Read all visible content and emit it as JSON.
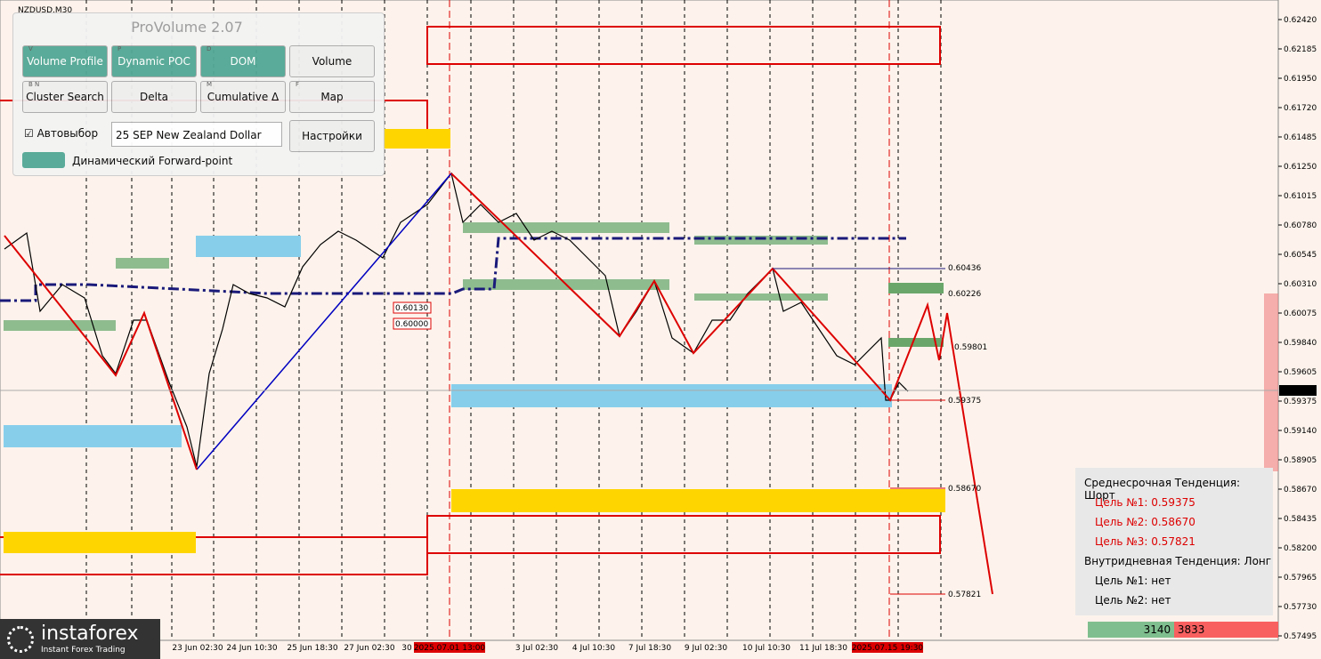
{
  "symbol": "NZDUSD,M30",
  "panel": {
    "title": "ProVolume 2.07",
    "buttons": [
      {
        "key": "V",
        "label": "Volume Profile"
      },
      {
        "key": "P",
        "label": "Dynamic POC"
      },
      {
        "key": "D",
        "label": "DOM"
      },
      {
        "key": "",
        "label": "Volume"
      },
      {
        "key": "B N",
        "label": "Cluster Search"
      },
      {
        "key": "",
        "label": "Delta"
      },
      {
        "key": "M",
        "label": "Cumulative Δ"
      },
      {
        "key": "F",
        "label": "Map"
      }
    ],
    "auto": "Автовыбор",
    "instrument": "25 SEP New Zealand Dollar",
    "settings": "Настройки",
    "forward": "Динамический Forward-point"
  },
  "price_axis": [
    "0.62420",
    "0.62185",
    "0.61950",
    "0.61720",
    "0.61485",
    "0.61250",
    "0.61015",
    "0.60780",
    "0.60545",
    "0.60310",
    "0.60075",
    "0.59840",
    "0.59605",
    "0.59375",
    "0.59140",
    "0.58905",
    "0.58670",
    "0.58435",
    "0.58200",
    "0.57965",
    "0.57730",
    "0.57495"
  ],
  "current_price": "0.59457",
  "time_axis": [
    "23 Jun 02:30",
    "24 Jun 10:30",
    "25 Jun 18:30",
    "27 Jun 02:30",
    "30",
    "2025.07.01 13:00",
    "3 Jul 02:30",
    "4 Jul 10:30",
    "7 Jul 18:30",
    "9 Jul 02:30",
    "10 Jul 10:30",
    "11 Jul 18:30",
    "2025.07.15 19:30"
  ],
  "levels": [
    "0.60436",
    "0.60226",
    "0.59801",
    "0.59375",
    "0.58670",
    "0.57821",
    "0.60130",
    "0.60000"
  ],
  "info": {
    "mid_title": "Среднесрочная Тенденция: Шорт",
    "mid_targets": [
      "Цель №1: 0.59375",
      "Цель №2: 0.58670",
      "Цель №3: 0.57821"
    ],
    "intra_title": "Внутридневная Тенденция: Лонг",
    "intra_targets": [
      "Цель №1: нет",
      "Цель №2: нет"
    ]
  },
  "volume": {
    "buy": "3140",
    "sell": "3833"
  },
  "logo": {
    "name": "instaforex",
    "tagline": "Instant Forex Trading"
  }
}
